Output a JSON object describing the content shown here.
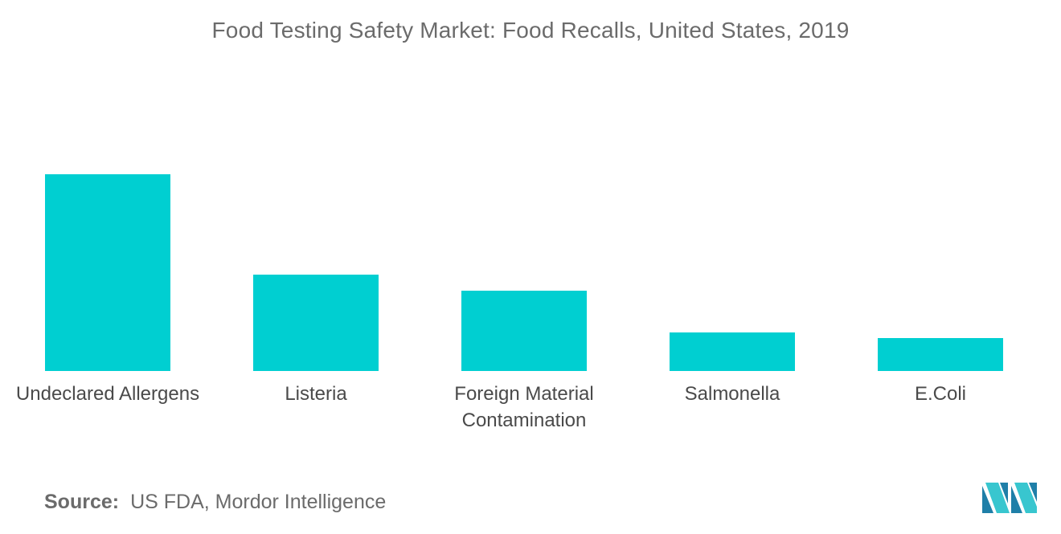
{
  "chart_data": {
    "type": "bar",
    "title": "Food Testing Safety Market: Food Recalls, United States, 2019",
    "categories": [
      [
        "Undeclared Allergens"
      ],
      [
        "Listeria"
      ],
      [
        "Foreign Material",
        "Contamination"
      ],
      [
        "Salmonella"
      ],
      [
        "E.Coli"
      ]
    ],
    "values": [
      245,
      120,
      100,
      48,
      41
    ],
    "ylim": [
      0,
      245
    ],
    "xlabel": "",
    "ylabel": "",
    "grid": false,
    "legend": "none",
    "bar_color": "#00cfd1"
  },
  "source": {
    "label": "Source:",
    "text": "US FDA, Mordor Intelligence"
  },
  "logo": {
    "icon": "mordor-intelligence-logo-icon",
    "colors": [
      "#1f7fa8",
      "#38c6cf"
    ]
  }
}
